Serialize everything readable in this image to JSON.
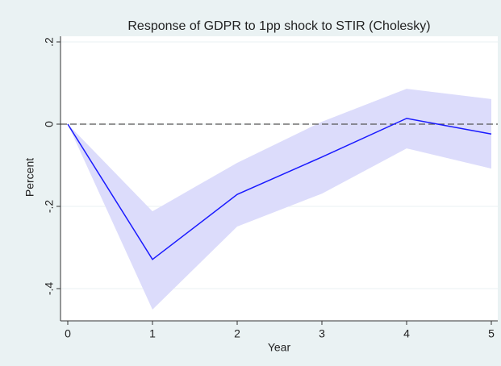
{
  "chart_data": {
    "type": "line",
    "title": "Response of GDPR to 1pp shock to STIR (Cholesky)",
    "x_label": "Year",
    "y_label": "Percent",
    "x": [
      0,
      1,
      2,
      3,
      4,
      5
    ],
    "series": [
      {
        "color": "#1a1aff",
        "values": [
          0,
          -0.329,
          -0.171,
          -0.08,
          0.014,
          -0.024
        ]
      }
    ],
    "band": {
      "color": "#dcdcfb",
      "lower": [
        0,
        -0.451,
        -0.249,
        -0.169,
        -0.059,
        -0.108
      ],
      "upper": [
        0,
        -0.212,
        -0.094,
        0.006,
        0.086,
        0.061
      ]
    },
    "xlim": [
      0,
      5
    ],
    "xticks": [
      0,
      1,
      2,
      3,
      4,
      5
    ],
    "ylim": [
      -0.4,
      0.2
    ],
    "yticks": [
      {
        "value": -0.4,
        "label": "-.4"
      },
      {
        "value": -0.2,
        "label": "-.2"
      },
      0,
      {
        "value": 0.2,
        "label": ".2"
      }
    ],
    "grid": true
  }
}
